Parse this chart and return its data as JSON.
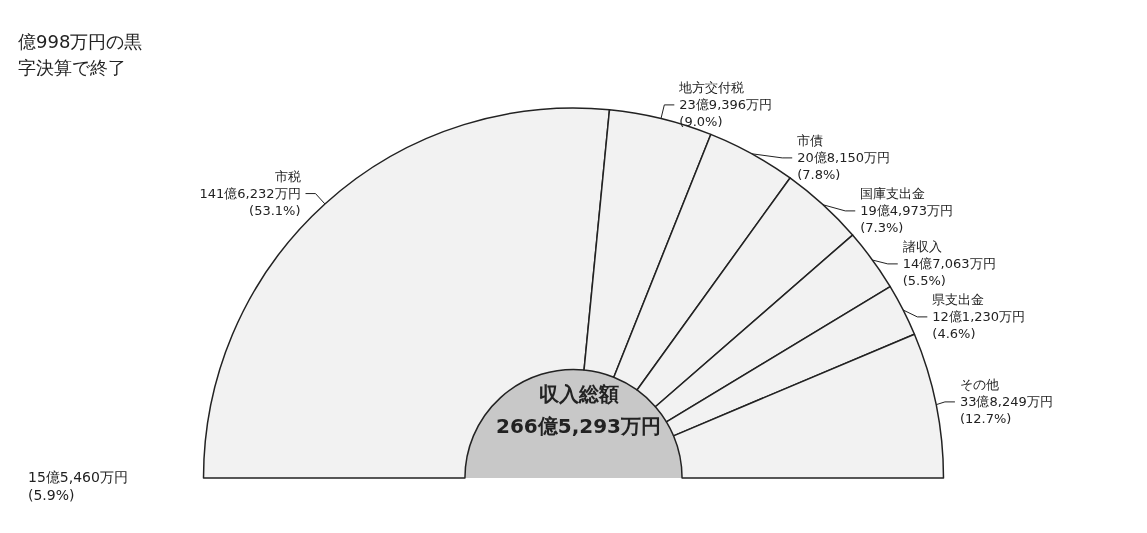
{
  "chart_data": {
    "type": "donut",
    "title": "収入総額\n266億5,293万円",
    "categories": [
      "市税",
      "地方交付税",
      "市債",
      "国庫支出金",
      "諸収入",
      "県支出金",
      "その他"
    ],
    "values": [
      53.1,
      9.0,
      7.8,
      7.3,
      5.5,
      4.6,
      12.7
    ],
    "value_labels": [
      "141億6,232万円\n(53.1%)",
      "23億9,396万円\n(9.0%)",
      "20億8,150万円\n(7.8%)",
      "19億4,973万円\n(7.3%)",
      "14億7,063万円\n(5.5%)",
      "12億1,230万円\n(4.6%)",
      "33億8,249万円\n(12.7%)"
    ],
    "colors": [
      "#f2f2f2",
      "#f2f2f2",
      "#f2f2f2",
      "#f2f2f2",
      "#f2f2f2",
      "#f2f2f2",
      "#f2f2f2"
    ],
    "annotations": [
      "億998万円の黒字決算で終了",
      "15億5,460万円\n(5.9%)"
    ]
  }
}
